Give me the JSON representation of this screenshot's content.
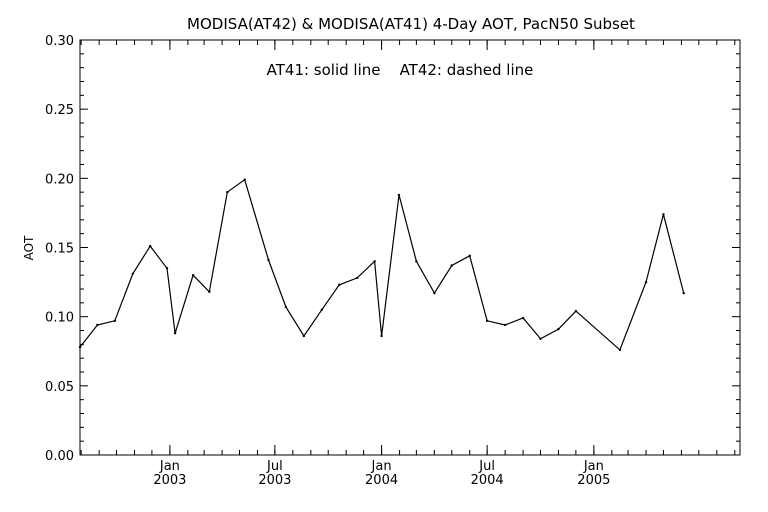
{
  "chart_data": {
    "type": "line",
    "title": "MODISA(AT42) & MODISA(AT41) 4-Day AOT, PacN50 Subset",
    "annotation": "AT41: solid line    AT42: dashed line",
    "ylabel": "AOT",
    "xlabel": "",
    "ylim": [
      0.0,
      0.3
    ],
    "xlim": [
      "2002-07-30",
      "2005-09-10"
    ],
    "y_ticks": [
      "0.00",
      "0.05",
      "0.10",
      "0.15",
      "0.20",
      "0.25",
      "0.30"
    ],
    "x_ticks": [
      {
        "date": "2003-01-01",
        "month": "Jan",
        "year": "2003"
      },
      {
        "date": "2003-07-01",
        "month": "Jul",
        "year": "2003"
      },
      {
        "date": "2004-01-01",
        "month": "Jan",
        "year": "2004"
      },
      {
        "date": "2004-07-01",
        "month": "Jul",
        "year": "2004"
      },
      {
        "date": "2005-01-01",
        "month": "Jan",
        "year": "2005"
      }
    ],
    "grid": false,
    "series": [
      {
        "name": "AT41",
        "style": "solid",
        "color": "#000000",
        "points": [
          {
            "x": "2002-07-30",
            "y": 0.078
          },
          {
            "x": "2002-08-29",
            "y": 0.094
          },
          {
            "x": "2002-09-28",
            "y": 0.097
          },
          {
            "x": "2002-10-29",
            "y": 0.131
          },
          {
            "x": "2002-11-28",
            "y": 0.151
          },
          {
            "x": "2002-12-27",
            "y": 0.135
          },
          {
            "x": "2003-01-10",
            "y": 0.088
          },
          {
            "x": "2003-02-10",
            "y": 0.13
          },
          {
            "x": "2003-03-10",
            "y": 0.118
          },
          {
            "x": "2003-04-10",
            "y": 0.19
          },
          {
            "x": "2003-05-10",
            "y": 0.199
          },
          {
            "x": "2003-06-20",
            "y": 0.141
          },
          {
            "x": "2003-07-20",
            "y": 0.107
          },
          {
            "x": "2003-08-20",
            "y": 0.086
          },
          {
            "x": "2003-09-20",
            "y": 0.105
          },
          {
            "x": "2003-10-20",
            "y": 0.123
          },
          {
            "x": "2003-11-20",
            "y": 0.128
          },
          {
            "x": "2003-12-20",
            "y": 0.14
          },
          {
            "x": "2004-01-01",
            "y": 0.086
          },
          {
            "x": "2004-01-31",
            "y": 0.188
          },
          {
            "x": "2004-03-01",
            "y": 0.14
          },
          {
            "x": "2004-04-01",
            "y": 0.117
          },
          {
            "x": "2004-05-01",
            "y": 0.137
          },
          {
            "x": "2004-06-01",
            "y": 0.144
          },
          {
            "x": "2004-07-01",
            "y": 0.097
          },
          {
            "x": "2004-08-01",
            "y": 0.094
          },
          {
            "x": "2004-09-01",
            "y": 0.099
          },
          {
            "x": "2004-10-01",
            "y": 0.084
          },
          {
            "x": "2004-11-01",
            "y": 0.091
          },
          {
            "x": "2004-12-01",
            "y": 0.104
          },
          {
            "x": "2005-02-15",
            "y": 0.076
          },
          {
            "x": "2005-04-01",
            "y": 0.125
          },
          {
            "x": "2005-05-01",
            "y": 0.174
          },
          {
            "x": "2005-06-05",
            "y": 0.117
          }
        ]
      }
    ]
  }
}
